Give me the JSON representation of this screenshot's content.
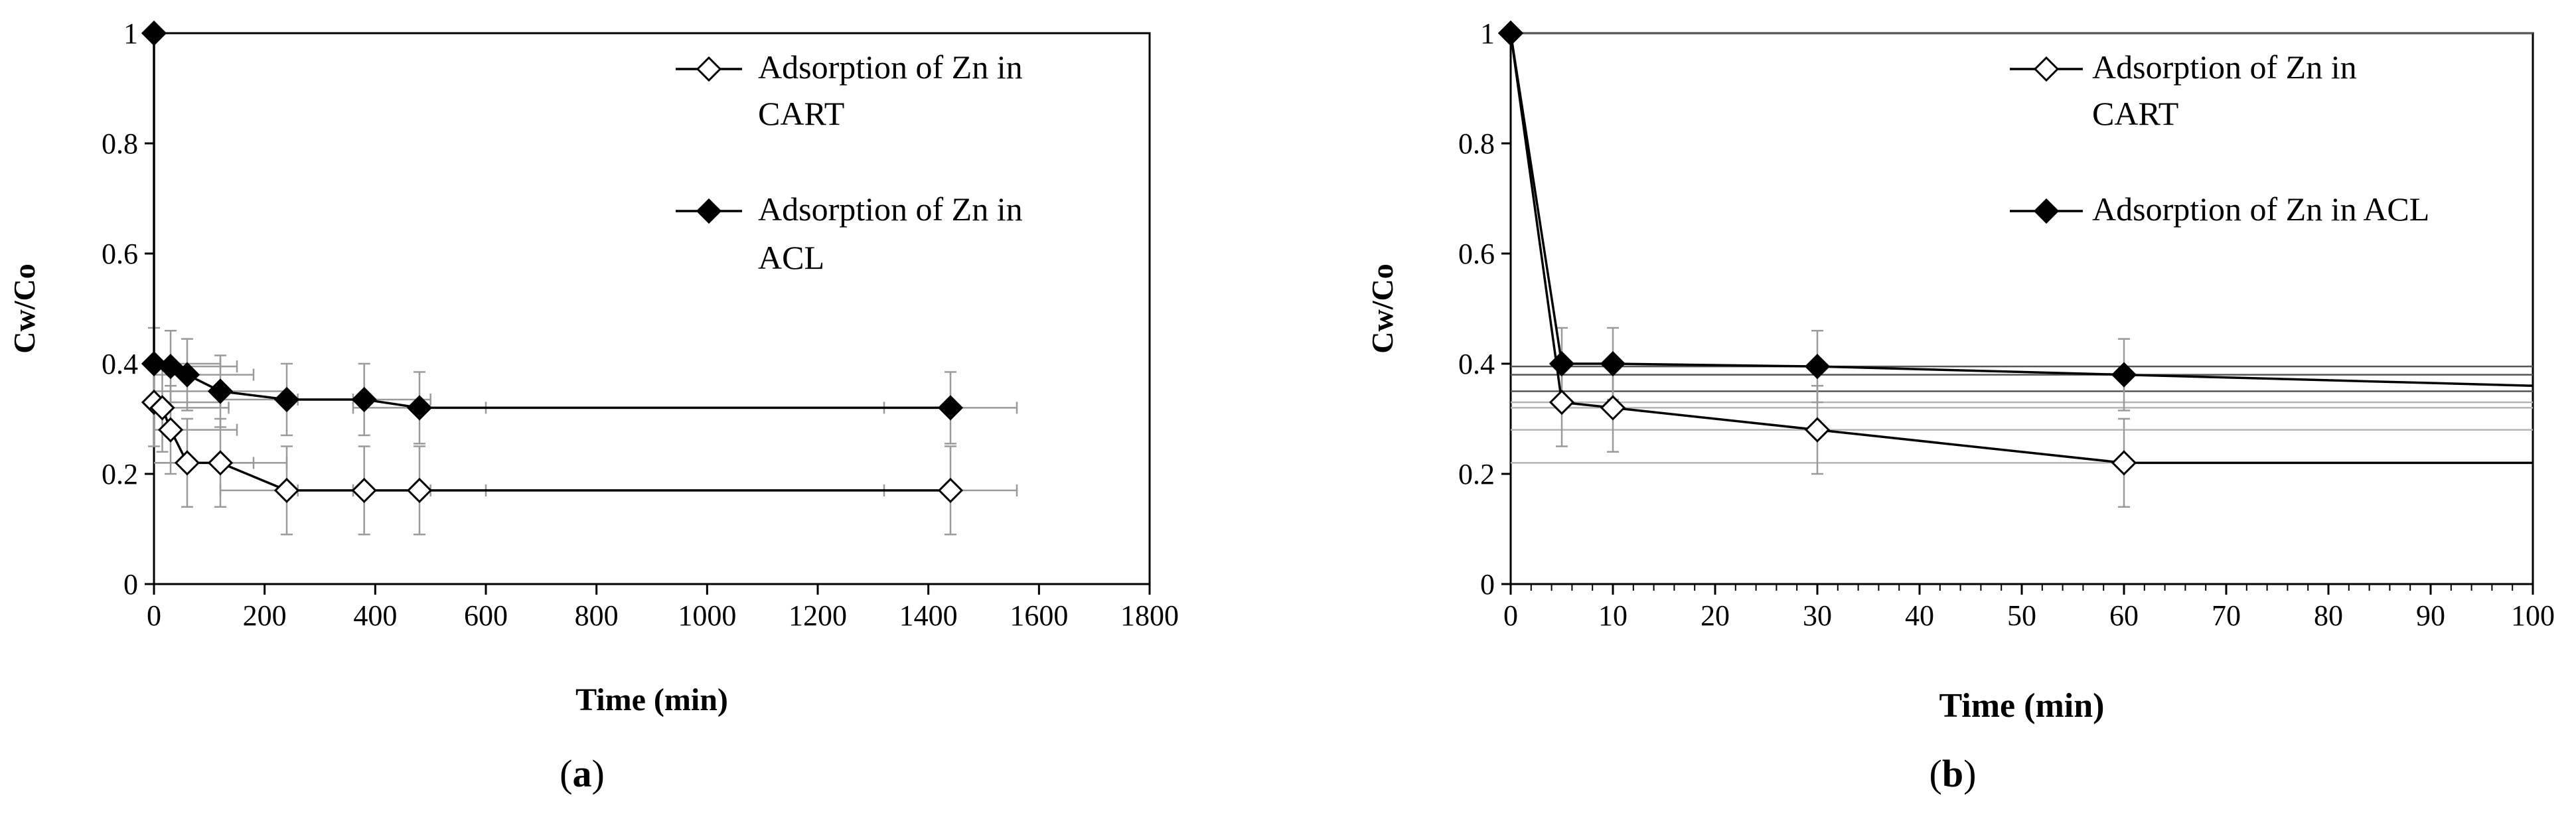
{
  "chart_data": [
    {
      "type": "scatter",
      "panel_label": "a",
      "xlabel": "Time (min)",
      "ylabel": "Cw/Co",
      "xlim": [
        0,
        1800
      ],
      "ylim": [
        0,
        1
      ],
      "xticks": [
        0,
        200,
        400,
        600,
        800,
        1000,
        1200,
        1400,
        1600,
        1800
      ],
      "yticks": [
        0,
        0.2,
        0.4,
        0.6,
        0.8,
        1
      ],
      "xtick_labels": [
        "0",
        "200",
        "400",
        "600",
        "800",
        "1000",
        "1200",
        "1400",
        "1600",
        "1800"
      ],
      "ytick_labels": [
        "0",
        "0.2",
        "0.4",
        "0.6",
        "0.8",
        "1"
      ],
      "series": [
        {
          "name": "Adsorption of Zn in CART",
          "legend_lines": [
            "Adsorption of Zn in",
            "CART"
          ],
          "marker": "open-diamond",
          "x": [
            0,
            15,
            30,
            60,
            120,
            240,
            380,
            480,
            1440
          ],
          "y": [
            0.33,
            0.32,
            0.28,
            0.22,
            0.22,
            0.17,
            0.17,
            0.17,
            0.17
          ],
          "yerr": 0.08,
          "xerr": 120
        },
        {
          "name": "Adsorption of Zn in ACL",
          "legend_lines": [
            "Adsorption of Zn in",
            "ACL"
          ],
          "marker": "filled-diamond",
          "x": [
            0,
            0,
            30,
            60,
            120,
            240,
            380,
            480,
            1440
          ],
          "y": [
            1.0,
            0.4,
            0.395,
            0.38,
            0.35,
            0.335,
            0.335,
            0.32,
            0.32
          ],
          "yerr": 0.065,
          "xerr": 120
        }
      ]
    },
    {
      "type": "scatter",
      "panel_label": "b",
      "xlabel": "Time (min)",
      "ylabel": "Cw/Co",
      "xlim": [
        0,
        100
      ],
      "ylim": [
        0,
        1
      ],
      "xticks": [
        0,
        10,
        20,
        30,
        40,
        50,
        60,
        70,
        80,
        90,
        100
      ],
      "yticks": [
        0,
        0.2,
        0.4,
        0.6,
        0.8,
        1
      ],
      "xtick_labels": [
        "0",
        "10",
        "20",
        "30",
        "40",
        "50",
        "60",
        "70",
        "80",
        "90",
        "100"
      ],
      "ytick_labels": [
        "0",
        "0.2",
        "0.4",
        "0.6",
        "0.8",
        "1"
      ],
      "series": [
        {
          "name": "Adsorption of Zn in CART",
          "legend_lines": [
            "Adsorption of Zn in",
            "CART"
          ],
          "marker": "open-diamond",
          "x": [
            0,
            5,
            10,
            30,
            60
          ],
          "y": [
            1.0,
            0.33,
            0.32,
            0.28,
            0.22
          ],
          "yerr": 0.08,
          "line_extends_to": [
            100,
            0.22
          ],
          "hlines": [
            0.22,
            0.28,
            0.32,
            0.33
          ]
        },
        {
          "name": "Adsorption of Zn in ACL",
          "legend_lines": [
            "Adsorption of Zn in ACL"
          ],
          "marker": "filled-diamond",
          "x": [
            0,
            5,
            10,
            30,
            60
          ],
          "y": [
            1.0,
            0.4,
            0.4,
            0.395,
            0.38
          ],
          "yerr": 0.065,
          "line_extends_to": [
            100,
            0.36
          ],
          "hlines": [
            1.0,
            0.395,
            0.38,
            0.35
          ]
        }
      ]
    }
  ]
}
